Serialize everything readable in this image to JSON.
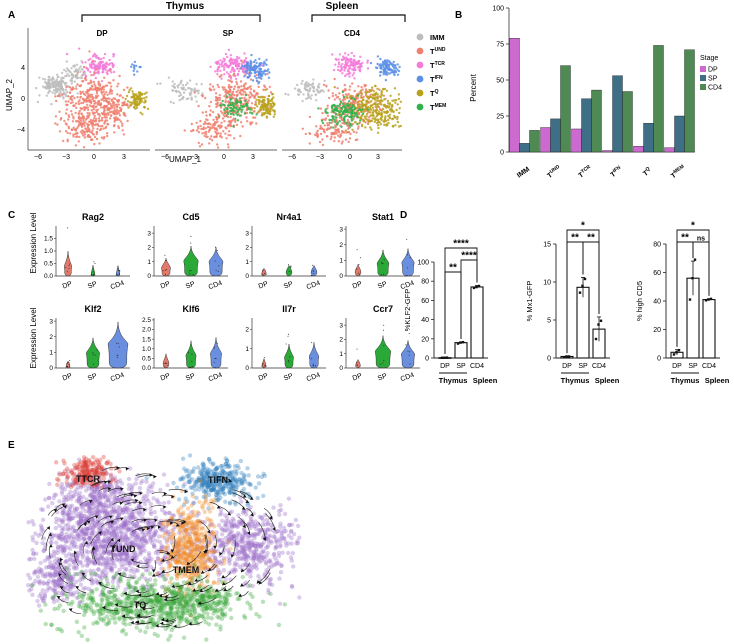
{
  "panels": {
    "A": "A",
    "B": "B",
    "C": "C",
    "D": "D",
    "E": "E"
  },
  "panelA": {
    "group_thymus": "Thymus",
    "group_spleen": "Spleen",
    "subtitles": [
      "DP",
      "SP",
      "CD4"
    ],
    "xlabel": "UMAP_1",
    "ylabel": "UMAP_2",
    "x_ticks": [
      "−6",
      "−3",
      "0",
      "3"
    ],
    "y_ticks": [
      "4",
      "0",
      "−4"
    ],
    "legend": [
      {
        "base": "IMM",
        "sup": "",
        "color": "#bdbdbd"
      },
      {
        "base": "T",
        "sup": "UND",
        "color": "#f08070"
      },
      {
        "base": "T",
        "sup": "TCR",
        "color": "#f47bd8"
      },
      {
        "base": "T",
        "sup": "IFN",
        "color": "#5b8fe6"
      },
      {
        "base": "T",
        "sup": "Q",
        "color": "#b8a21a"
      },
      {
        "base": "T",
        "sup": "MEM",
        "color": "#2fb34a"
      }
    ]
  },
  "chart_data": [
    {
      "type": "bar",
      "panel": "B",
      "title": "",
      "xlabel": "",
      "ylabel": "Percent",
      "ylim": [
        0,
        100
      ],
      "y_ticks": [
        "0",
        "25",
        "50",
        "75",
        "100"
      ],
      "categories": [
        {
          "base": "IMM",
          "sup": ""
        },
        {
          "base": "T",
          "sup": "UND"
        },
        {
          "base": "T",
          "sup": "TCR"
        },
        {
          "base": "T",
          "sup": "IFN"
        },
        {
          "base": "T",
          "sup": "Q"
        },
        {
          "base": "T",
          "sup": "MEM"
        }
      ],
      "legend_title": "Stage",
      "series": [
        {
          "name": "DP",
          "color": "#cc6ad0",
          "values": [
            79,
            17,
            16,
            1,
            4,
            3
          ]
        },
        {
          "name": "SP",
          "color": "#3f6f86",
          "values": [
            6,
            23,
            37,
            53,
            20,
            25
          ]
        },
        {
          "name": "CD4",
          "color": "#4f8a55",
          "values": [
            15,
            60,
            43,
            42,
            74,
            71
          ]
        }
      ]
    },
    {
      "type": "violin",
      "panel": "C",
      "ylabel": "Expression Level",
      "categories": [
        "DP",
        "SP",
        "CD4"
      ],
      "colors": {
        "DP": "#e07a6c",
        "SP": "#2aa838",
        "CD4": "#6b8fdf"
      },
      "genes": [
        {
          "name": "Rag2",
          "ymax": 2,
          "ticks": [
            "0.0",
            "0.5",
            "1.0",
            "1.5"
          ],
          "levels": [
            0.35,
            0.02,
            0.01
          ]
        },
        {
          "name": "Cd5",
          "ymax": 3.5,
          "ticks": [
            "0",
            "1",
            "2",
            "3"
          ],
          "levels": [
            0.5,
            1.0,
            0.95
          ]
        },
        {
          "name": "Nr4a1",
          "ymax": 3.5,
          "ticks": [
            "0",
            "1",
            "2",
            "3"
          ],
          "levels": [
            0.08,
            0.2,
            0.2
          ]
        },
        {
          "name": "Stat1",
          "ymax": 3.2,
          "ticks": [
            "0",
            "1",
            "2",
            "3"
          ],
          "levels": [
            0.2,
            0.75,
            0.8
          ]
        },
        {
          "name": "Klf2",
          "ymax": 3.2,
          "ticks": [
            "0",
            "1",
            "2",
            "3"
          ],
          "levels": [
            0.02,
            0.9,
            1.5
          ]
        },
        {
          "name": "Klf6",
          "ymax": 2.6,
          "ticks": [
            "0.0",
            "0.5",
            "1.0",
            "1.5",
            "2.0",
            "2.5"
          ],
          "levels": [
            0.2,
            0.6,
            0.7
          ]
        },
        {
          "name": "Il7r",
          "ymax": 2.6,
          "ticks": [
            "0",
            "1",
            "2"
          ],
          "levels": [
            0.05,
            0.5,
            0.55
          ]
        },
        {
          "name": "Ccr7",
          "ymax": 3.5,
          "ticks": [
            "0",
            "1",
            "2",
            "3"
          ],
          "levels": [
            0.1,
            1.1,
            0.9
          ]
        }
      ]
    },
    {
      "type": "bar",
      "panel": "D1",
      "ylabel": "%KLF2-GFP",
      "ylim": [
        0,
        100
      ],
      "y_ticks": [
        "0",
        "20",
        "40",
        "60",
        "80",
        "100"
      ],
      "categories": [
        "DP",
        "SP",
        "CD4"
      ],
      "values": [
        0.3,
        16,
        74
      ],
      "points": [
        [
          0.2,
          0.3,
          0.4
        ],
        [
          15,
          16,
          16.5
        ],
        [
          73,
          74,
          75
        ]
      ],
      "errors": [
        0.1,
        0.8,
        1.5
      ],
      "significance": [
        {
          "pair": [
            0,
            2
          ],
          "label": "****",
          "level": 1
        },
        {
          "pair": [
            1,
            2
          ],
          "label": "****",
          "level": 2
        },
        {
          "pair": [
            0,
            1
          ],
          "label": "**",
          "level": 3
        }
      ],
      "group_labels": [
        "Thymus",
        "Spleen"
      ]
    },
    {
      "type": "bar",
      "panel": "D2",
      "ylabel": "% Mx1-GFP",
      "ylim": [
        0,
        15
      ],
      "y_ticks": [
        "0",
        "5",
        "10",
        "15"
      ],
      "categories": [
        "DP",
        "SP",
        "CD4"
      ],
      "values": [
        0.2,
        9.3,
        3.8
      ],
      "points": [
        [
          0.1,
          0.2,
          0.2
        ],
        [
          8.6,
          9.5,
          10.4
        ],
        [
          2.5,
          4.4,
          4.9
        ]
      ],
      "errors": [
        0.05,
        1.3,
        1.6
      ],
      "significance": [
        {
          "pair": [
            0,
            2
          ],
          "label": "*",
          "level": 1
        },
        {
          "pair": [
            0,
            1
          ],
          "label": "**",
          "level": 2
        },
        {
          "pair": [
            1,
            2
          ],
          "label": "**",
          "level": 2
        }
      ],
      "group_labels": [
        "Thymus",
        "Spleen"
      ]
    },
    {
      "type": "bar",
      "panel": "D3",
      "ylabel": "% high CD5",
      "ylim": [
        0,
        80
      ],
      "y_ticks": [
        "0",
        "20",
        "40",
        "60",
        "80"
      ],
      "categories": [
        "DP",
        "SP",
        "CD4"
      ],
      "values": [
        4,
        56,
        41
      ],
      "points": [
        [
          2.5,
          4,
          5.5
        ],
        [
          41,
          56,
          69
        ],
        [
          40.5,
          41,
          41.5
        ]
      ],
      "errors": [
        1.8,
        12,
        0.6
      ],
      "significance": [
        {
          "pair": [
            0,
            2
          ],
          "label": "*",
          "level": 1
        },
        {
          "pair": [
            0,
            1
          ],
          "label": "**",
          "level": 2
        },
        {
          "pair": [
            1,
            2
          ],
          "label": "ns",
          "level": 2
        }
      ],
      "group_labels": [
        "Thymus",
        "Spleen"
      ]
    }
  ],
  "panelE": {
    "clusters": [
      {
        "label": "TTCR",
        "color": "#d9342b"
      },
      {
        "label": "TIFN",
        "color": "#2f7dbd"
      },
      {
        "label": "TUND",
        "color": "#9a6cc9"
      },
      {
        "label": "TMEM",
        "color": "#f08a24"
      },
      {
        "label": "TQ",
        "color": "#3aa53a"
      }
    ]
  }
}
